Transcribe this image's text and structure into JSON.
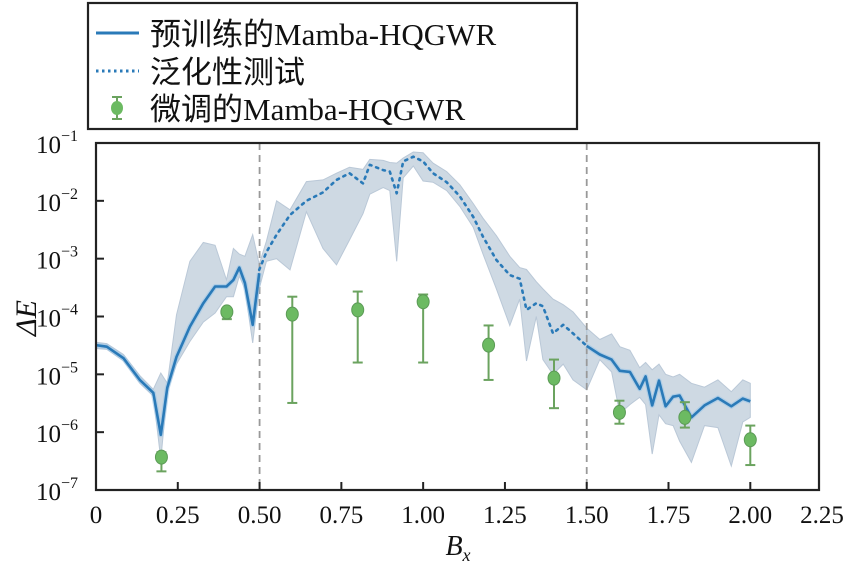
{
  "chart_data": {
    "type": "line",
    "xlabel": "B",
    "xlabel_sub": "x",
    "ylabel": "ΔE",
    "xlim": [
      0,
      2.21
    ],
    "ylim": [
      1e-07,
      0.1
    ],
    "yscale": "log",
    "grid": false,
    "legend_placement": "top-left (above plot)",
    "xticks": [
      "0",
      "0.25",
      "0.50",
      "0.75",
      "1.00",
      "1.25",
      "1.50",
      "1.75",
      "2.00",
      "2.25"
    ],
    "xtick_values": [
      0,
      0.25,
      0.5,
      0.75,
      1.0,
      1.25,
      1.5,
      1.75,
      2.0,
      2.25
    ],
    "yticks": [
      {
        "base": "10",
        "exp": "-1"
      },
      {
        "base": "10",
        "exp": "-2"
      },
      {
        "base": "10",
        "exp": "-3"
      },
      {
        "base": "10",
        "exp": "-4"
      },
      {
        "base": "10",
        "exp": "-5"
      },
      {
        "base": "10",
        "exp": "-6"
      },
      {
        "base": "10",
        "exp": "-7"
      }
    ],
    "ytick_values": [
      0.1,
      0.01,
      0.001,
      0.0001,
      1e-05,
      1e-06,
      1e-07
    ],
    "vlines": [
      0.5,
      1.5
    ],
    "colors": {
      "line": "#2a7ab8",
      "band": "#c9d5e1",
      "band_edge": "#b3c3d3",
      "finetune": "#6cba62",
      "finetune_edge": "#5b9a56",
      "vline": "#999999"
    },
    "series": [
      {
        "name": "预训练的Mamba-HQGWR",
        "style": "solid",
        "segments": [
          {
            "x": [
              0,
              0.033,
              0.084,
              0.134,
              0.175,
              0.198,
              0.218,
              0.246,
              0.287,
              0.328,
              0.364,
              0.399,
              0.42,
              0.438,
              0.455,
              0.479,
              0.499
            ],
            "y": [
              3.2e-05,
              3e-05,
              1.9e-05,
              8e-06,
              4.8e-06,
              9e-07,
              5.9e-06,
              2e-05,
              6.7e-05,
              0.00017,
              0.00033,
              0.00033,
              0.00043,
              0.0007,
              0.00038,
              7.2e-05,
              0.00056
            ],
            "upper": [
              3.6e-05,
              3.4e-05,
              2.2e-05,
              9.5e-06,
              5.5e-06,
              1.05e-05,
              7e-06,
              0.000107,
              0.0009,
              0.0019,
              0.0017,
              0.00043,
              0.0015,
              0.0012,
              0.0011,
              0.0026,
              0.0008
            ],
            "lower": [
              2.8e-05,
              2.7e-05,
              1.7e-05,
              7e-06,
              4.2e-06,
              3.4e-07,
              5e-06,
              1.5e-05,
              3.7e-05,
              8e-05,
              0.000115,
              0.00022,
              0.00022,
              0.0005,
              0.0003,
              3.5e-05,
              0.0003
            ]
          },
          {
            "x": [
              1.5,
              1.54,
              1.576,
              1.601,
              1.632,
              1.662,
              1.68,
              1.7,
              1.721,
              1.741,
              1.764,
              1.784,
              1.82,
              1.86,
              1.901,
              1.942,
              1.977,
              2.0
            ],
            "y": [
              3.1e-05,
              2.2e-05,
              1.8e-05,
              1.15e-05,
              1.1e-05,
              5.6e-06,
              9.2e-06,
              2.9e-06,
              7.8e-06,
              2.8e-06,
              4.1e-06,
              4.3e-06,
              1.8e-06,
              2.9e-06,
              3.9e-06,
              2.8e-06,
              3.8e-06,
              3.4e-06
            ],
            "upper": [
              6.3e-05,
              4e-05,
              5e-05,
              3e-05,
              2.6e-05,
              1.3e-05,
              1.6e-05,
              1.2e-05,
              1.5e-05,
              1e-05,
              9e-06,
              1e-05,
              7e-06,
              6e-06,
              8e-06,
              5e-06,
              8e-06,
              7e-06
            ],
            "lower": [
              5.4e-06,
              1.8e-05,
              1.1e-05,
              2.1e-06,
              3e-06,
              4e-06,
              3e-06,
              4.2e-07,
              2e-06,
              1.4e-06,
              1.3e-06,
              7e-07,
              3e-07,
              1.3e-06,
              1.2e-06,
              2.6e-07,
              1.5e-06,
              1.8e-06
            ]
          }
        ]
      },
      {
        "name": "泛化性测试",
        "style": "dotted",
        "segments": [
          {
            "x": [
              0.499,
              0.521,
              0.552,
              0.593,
              0.643,
              0.694,
              0.735,
              0.775,
              0.816,
              0.837,
              0.878,
              0.898,
              0.919,
              0.939,
              0.97,
              1.0,
              1.03,
              1.072,
              1.112,
              1.153,
              1.183,
              1.224,
              1.265,
              1.295,
              1.316,
              1.346,
              1.366,
              1.397,
              1.428,
              1.458,
              1.5
            ],
            "y": [
              0.00064,
              0.0013,
              0.0026,
              0.0057,
              0.01,
              0.014,
              0.023,
              0.03,
              0.02,
              0.042,
              0.034,
              0.032,
              0.0135,
              0.048,
              0.058,
              0.048,
              0.03,
              0.021,
              0.012,
              0.0053,
              0.0024,
              0.00095,
              0.00052,
              0.00045,
              0.00013,
              0.00017,
              0.00015,
              5.1e-05,
              7.2e-05,
              5.1e-05,
              3.1e-05
            ],
            "upper": [
              0.0008,
              0.002,
              0.01,
              0.007,
              0.0215,
              0.023,
              0.03,
              0.038,
              0.035,
              0.052,
              0.05,
              0.046,
              0.045,
              0.055,
              0.07,
              0.068,
              0.045,
              0.032,
              0.019,
              0.009,
              0.005,
              0.0025,
              0.0011,
              0.0007,
              0.00065,
              0.0004,
              0.0003,
              0.0002,
              0.00016,
              0.00012,
              6.3e-05
            ],
            "lower": [
              0.0003,
              0.0009,
              0.001,
              0.00064,
              0.0065,
              0.0015,
              0.00078,
              0.0021,
              0.006,
              0.013,
              0.017,
              0.015,
              0.0009,
              0.025,
              0.04,
              0.022,
              0.021,
              0.015,
              0.008,
              0.0035,
              0.0012,
              0.0003,
              7e-05,
              0.0002,
              1.7e-05,
              0.0001,
              1.8e-05,
              1e-05,
              1.5e-05,
              8e-06,
              5.4e-06
            ]
          }
        ]
      }
    ],
    "finetuned": {
      "name": "微调的Mamba-HQGWR",
      "x": [
        0.2,
        0.4,
        0.6,
        0.8,
        1.0,
        1.2,
        1.4,
        1.6,
        1.8,
        2.0
      ],
      "y": [
        3.7e-07,
        0.00012,
        0.00011,
        0.00013,
        0.00018,
        3.2e-05,
        8.6e-06,
        2.2e-06,
        1.8e-06,
        7.4e-07
      ],
      "err_low": [
        2.1e-07,
        9e-05,
        3.2e-06,
        1.6e-05,
        1.6e-05,
        8e-06,
        2.6e-06,
        1.4e-06,
        1.2e-06,
        2.7e-07
      ],
      "err_high": [
        4.5e-07,
        0.00013,
        0.00022,
        0.00027,
        0.00024,
        7e-05,
        1.8e-05,
        3.5e-06,
        3.3e-06,
        1.3e-06
      ]
    }
  }
}
